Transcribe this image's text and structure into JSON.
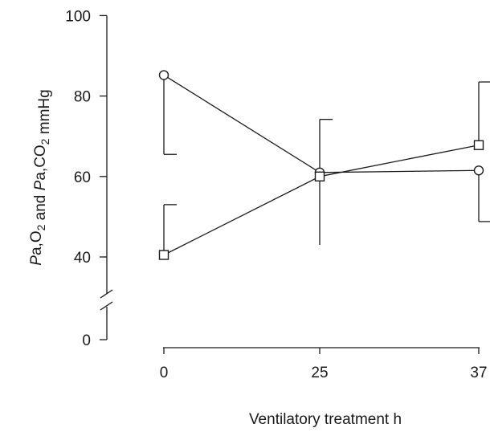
{
  "chart_data": {
    "type": "line",
    "xlabel": "Ventilatory treatment  h",
    "ylabel": {
      "text": "Pa,O2 and Pa,CO2  mmHg",
      "parts": [
        {
          "t": "P",
          "i": true,
          "s": false
        },
        {
          "t": "a,O",
          "i": false,
          "s": false
        },
        {
          "t": "2",
          "i": false,
          "s": true
        },
        {
          "t": " and ",
          "i": false,
          "s": false
        },
        {
          "t": "P",
          "i": true,
          "s": false
        },
        {
          "t": "a,CO",
          "i": false,
          "s": false
        },
        {
          "t": "2",
          "i": false,
          "s": true
        },
        {
          "t": "  mmHg",
          "i": false,
          "s": false
        }
      ]
    },
    "x_ticks": [
      "0",
      "25",
      "37"
    ],
    "y_ticks": [
      "0",
      "40",
      "60",
      "80",
      "100"
    ],
    "ylim": [
      40,
      100
    ],
    "y_axis_break": true,
    "grid": false,
    "legend": false,
    "series": [
      {
        "marker": "circle",
        "values": [
          85.2,
          61.0,
          61.5
        ],
        "error_low": [
          65.5,
          61.0,
          48.8
        ],
        "error_high": [
          85.2,
          61.0,
          61.5
        ]
      },
      {
        "marker": "square",
        "values": [
          40.5,
          60.0,
          67.8
        ],
        "error_low": [
          40.5,
          43.0,
          67.8
        ],
        "error_high": [
          53.0,
          74.2,
          83.5
        ]
      }
    ]
  }
}
